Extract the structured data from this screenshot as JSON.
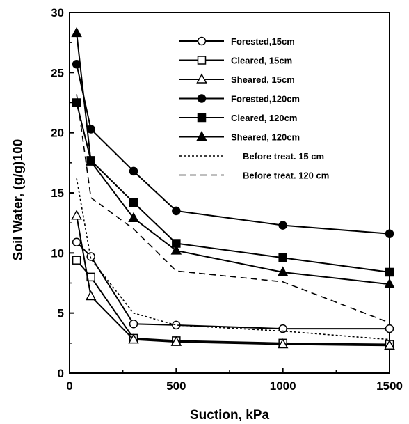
{
  "chart_data": {
    "type": "line",
    "title": "",
    "xlabel": "Suction, kPa",
    "ylabel": "Soil Water,  (g/g)100",
    "xlim": [
      0,
      1500
    ],
    "ylim": [
      0,
      30
    ],
    "xticks": [
      "0",
      "500",
      "1000",
      "1500"
    ],
    "yticks": [
      "0",
      "5",
      "10",
      "15",
      "20",
      "25",
      "30"
    ],
    "grid": false,
    "legend_position": "top-right",
    "series": [
      {
        "name": "Forested,15cm",
        "marker": "circle-open",
        "line": "solid",
        "x": [
          33,
          100,
          300,
          500,
          1000,
          1500
        ],
        "y": [
          10.9,
          9.7,
          4.1,
          4.0,
          3.7,
          3.7
        ]
      },
      {
        "name": "Cleared, 15cm",
        "marker": "square-open",
        "line": "solid",
        "x": [
          33,
          100,
          300,
          500,
          1000,
          1500
        ],
        "y": [
          9.4,
          8.0,
          2.9,
          2.7,
          2.5,
          2.4
        ]
      },
      {
        "name": "Sheared, 15cm",
        "marker": "triangle-open",
        "line": "solid",
        "x": [
          33,
          100,
          300,
          500,
          1000,
          1500
        ],
        "y": [
          13.1,
          6.4,
          2.8,
          2.6,
          2.4,
          2.3
        ]
      },
      {
        "name": "Forested,120cm",
        "marker": "circle-filled",
        "line": "solid",
        "x": [
          33,
          100,
          300,
          500,
          1000,
          1500
        ],
        "y": [
          25.7,
          20.3,
          16.8,
          13.5,
          12.3,
          11.6
        ]
      },
      {
        "name": "Cleared, 120cm",
        "marker": "square-filled",
        "line": "solid",
        "x": [
          33,
          100,
          300,
          500,
          1000,
          1500
        ],
        "y": [
          22.5,
          17.7,
          14.2,
          10.8,
          9.6,
          8.4
        ]
      },
      {
        "name": "Sheared, 120cm",
        "marker": "triangle-filled",
        "line": "solid",
        "x": [
          33,
          100,
          300,
          500,
          1000,
          1500
        ],
        "y": [
          28.3,
          17.6,
          12.9,
          10.2,
          8.4,
          7.4
        ]
      },
      {
        "name": "Before treat. 15 cm",
        "marker": "none",
        "line": "dotted",
        "x": [
          33,
          100,
          300,
          500,
          1000,
          1500
        ],
        "y": [
          16.2,
          9.5,
          5.0,
          4.0,
          3.5,
          2.8
        ]
      },
      {
        "name": "Before treat. 120 cm",
        "marker": "none",
        "line": "dashed",
        "x": [
          33,
          100,
          300,
          500,
          1000,
          1500
        ],
        "y": [
          23.2,
          14.6,
          12.0,
          8.5,
          7.6,
          4.2
        ]
      }
    ]
  }
}
